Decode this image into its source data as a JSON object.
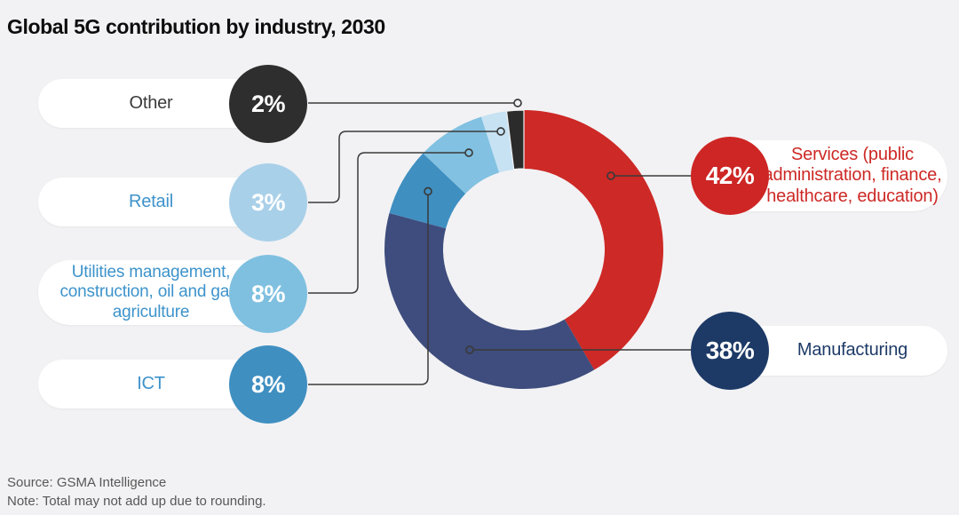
{
  "title": "Global 5G contribution by industry, 2030",
  "background_color": "#f2f2f4",
  "leader_line_color": "#3a3a3a",
  "footer": {
    "source": "Source: GSMA Intelligence",
    "note": "Note: Total may not add up due to rounding."
  },
  "chart_data": {
    "type": "pie",
    "subtype": "donut",
    "title": "Global 5G contribution by industry, 2030",
    "unit": "percent",
    "legend_position": "callouts-left-right",
    "segments": [
      {
        "label": "Services (public administration, finance, healthcare, education)",
        "value": 42,
        "color": "#cd2926"
      },
      {
        "label": "Manufacturing",
        "value": 38,
        "color": "#3e4d7d"
      },
      {
        "label": "ICT",
        "value": 8,
        "color": "#3f8fc1"
      },
      {
        "label": "Utilities management, construction, oil and gas, agriculture",
        "value": 8,
        "color": "#82c1e1"
      },
      {
        "label": "Retail",
        "value": 3,
        "color": "#c6e2f3"
      },
      {
        "label": "Other",
        "value": 2,
        "color": "#2b2b2b"
      }
    ]
  },
  "callouts": {
    "left": [
      {
        "label": "Other",
        "pct": "2%",
        "circle_color": "#2e2e2e",
        "label_color": "#3a3a3a"
      },
      {
        "label": "Retail",
        "pct": "3%",
        "circle_color": "#a9d0e9",
        "label_color": "#3d93cb"
      },
      {
        "label": "Utilities management, construction, oil and gas, agriculture",
        "pct": "8%",
        "circle_color": "#7fc0e0",
        "label_color": "#3d93cb"
      },
      {
        "label": "ICT",
        "pct": "8%",
        "circle_color": "#3f8fc1",
        "label_color": "#3d93cb"
      }
    ],
    "right": [
      {
        "label": "Services (public administration, finance, healthcare, education)",
        "pct": "42%",
        "circle_color": "#cd2624",
        "label_color": "#cd2926"
      },
      {
        "label": "Manufacturing",
        "pct": "38%",
        "circle_color": "#1d3a67",
        "label_color": "#1d3a67"
      }
    ]
  }
}
